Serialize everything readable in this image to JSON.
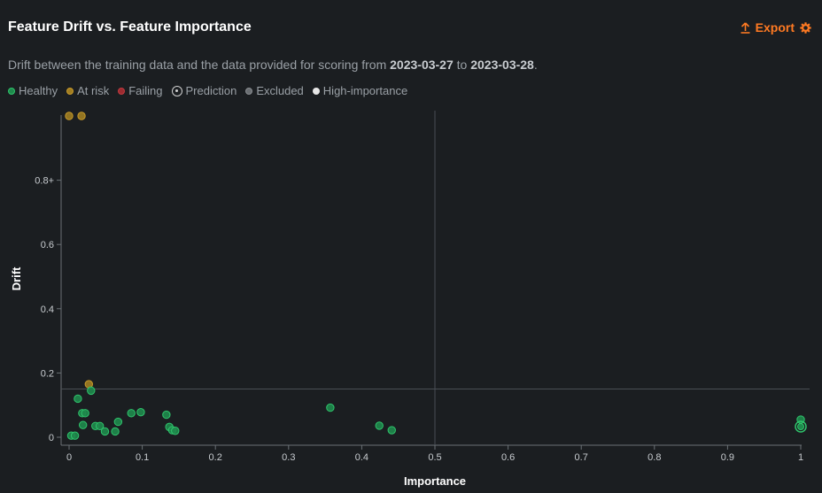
{
  "header": {
    "title": "Feature Drift vs. Feature Importance",
    "export_label": "Export"
  },
  "subtitle": {
    "prefix": "Drift between the training data and the data provided for scoring from ",
    "start_date": "2023-03-27",
    "middle": " to ",
    "end_date": "2023-03-28",
    "suffix": "."
  },
  "legend": [
    {
      "label": "Healthy",
      "color": "#1fa35a",
      "kind": "dot"
    },
    {
      "label": "At risk",
      "color": "#b08a2a",
      "kind": "dot"
    },
    {
      "label": "Failing",
      "color": "#b5343a",
      "kind": "dot"
    },
    {
      "label": "Prediction",
      "color": "#d0d0d0",
      "kind": "target"
    },
    {
      "label": "Excluded",
      "color": "#7a7a7a",
      "kind": "dot"
    },
    {
      "label": "High-importance",
      "color": "#e6e6e6",
      "kind": "dot"
    }
  ],
  "colors": {
    "healthy_fill": "#1f8a4c",
    "healthy_stroke": "#2fc46c",
    "atrisk_fill": "#a07d22",
    "atrisk_stroke": "#c89a2a",
    "accent": "#ff7a22",
    "axis": "#6b7075",
    "threshold": "#4a4f55"
  },
  "chart_data": {
    "type": "scatter",
    "title": "",
    "xlabel": "Importance",
    "ylabel": "Drift",
    "xlim": [
      0,
      1
    ],
    "ylim": [
      0,
      1
    ],
    "x_ticks": [
      {
        "v": 0,
        "label": "0"
      },
      {
        "v": 0.1,
        "label": "0.1"
      },
      {
        "v": 0.2,
        "label": "0.2"
      },
      {
        "v": 0.3,
        "label": "0.3"
      },
      {
        "v": 0.4,
        "label": "0.4"
      },
      {
        "v": 0.5,
        "label": "0.5"
      },
      {
        "v": 0.6,
        "label": "0.6"
      },
      {
        "v": 0.7,
        "label": "0.7"
      },
      {
        "v": 0.8,
        "label": "0.8"
      },
      {
        "v": 0.9,
        "label": "0.9"
      },
      {
        "v": 1,
        "label": "1"
      }
    ],
    "y_ticks": [
      {
        "v": 0,
        "label": "0"
      },
      {
        "v": 0.2,
        "label": "0.2"
      },
      {
        "v": 0.4,
        "label": "0.4"
      },
      {
        "v": 0.6,
        "label": "0.6"
      },
      {
        "v": 0.8,
        "label": "0.8+"
      }
    ],
    "thresholds": {
      "importance": 0.5,
      "drift": 0.15
    },
    "series": [
      {
        "name": "At risk",
        "status": "atrisk",
        "points": [
          {
            "x": 0.0,
            "y": 1.0
          },
          {
            "x": 0.017,
            "y": 1.0
          },
          {
            "x": 0.027,
            "y": 0.165
          }
        ]
      },
      {
        "name": "Healthy",
        "status": "healthy",
        "points": [
          {
            "x": 0.003,
            "y": 0.005
          },
          {
            "x": 0.008,
            "y": 0.005
          },
          {
            "x": 0.012,
            "y": 0.12
          },
          {
            "x": 0.018,
            "y": 0.075
          },
          {
            "x": 0.022,
            "y": 0.075
          },
          {
            "x": 0.019,
            "y": 0.038
          },
          {
            "x": 0.03,
            "y": 0.145
          },
          {
            "x": 0.036,
            "y": 0.035
          },
          {
            "x": 0.042,
            "y": 0.035
          },
          {
            "x": 0.049,
            "y": 0.018
          },
          {
            "x": 0.063,
            "y": 0.018
          },
          {
            "x": 0.067,
            "y": 0.048
          },
          {
            "x": 0.085,
            "y": 0.075
          },
          {
            "x": 0.098,
            "y": 0.078
          },
          {
            "x": 0.133,
            "y": 0.07
          },
          {
            "x": 0.137,
            "y": 0.032
          },
          {
            "x": 0.141,
            "y": 0.022
          },
          {
            "x": 0.145,
            "y": 0.02
          },
          {
            "x": 0.357,
            "y": 0.092
          },
          {
            "x": 0.424,
            "y": 0.036
          },
          {
            "x": 0.441,
            "y": 0.022
          },
          {
            "x": 1.0,
            "y": 0.055
          }
        ]
      },
      {
        "name": "Prediction",
        "status": "prediction",
        "points": [
          {
            "x": 1.0,
            "y": 0.033
          }
        ]
      }
    ]
  }
}
